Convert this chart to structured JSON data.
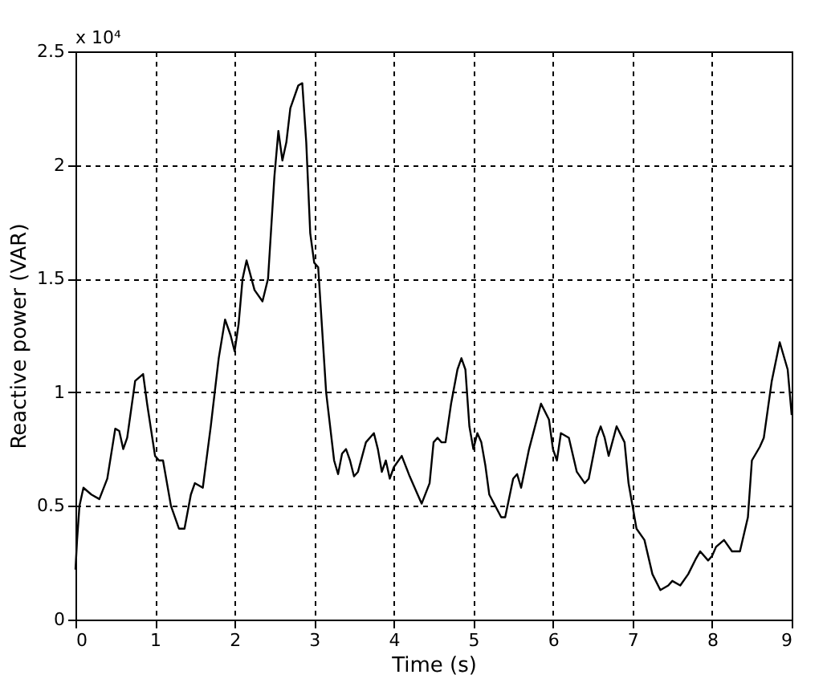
{
  "chart_data": {
    "type": "line",
    "xlabel": "Time (s)",
    "ylabel": "Reactive power (VAR)",
    "annotations": [
      "x 10⁴"
    ],
    "xlim": [
      0,
      9
    ],
    "xticks": [
      0,
      1,
      2,
      3,
      4,
      5,
      6,
      7,
      8,
      9
    ],
    "ylim": [
      0,
      2.5
    ],
    "yticks": [
      0,
      0.5,
      1,
      1.5,
      2,
      2.5
    ],
    "grid": true,
    "line_style": "solid",
    "series": [
      {
        "color": "#000000",
        "x": [
          0,
          0.02,
          0.05,
          0.1,
          0.2,
          0.3,
          0.4,
          0.5,
          0.55,
          0.6,
          0.65,
          0.75,
          0.85,
          0.9,
          1.0,
          1.05,
          1.1,
          1.2,
          1.3,
          1.37,
          1.45,
          1.5,
          1.6,
          1.7,
          1.8,
          1.88,
          1.95,
          2.0,
          2.05,
          2.1,
          2.15,
          2.25,
          2.35,
          2.42,
          2.5,
          2.55,
          2.6,
          2.65,
          2.7,
          2.8,
          2.85,
          2.9,
          2.95,
          3.0,
          3.05,
          3.15,
          3.25,
          3.3,
          3.35,
          3.4,
          3.45,
          3.5,
          3.55,
          3.65,
          3.75,
          3.8,
          3.85,
          3.9,
          3.95,
          4.0,
          4.1,
          4.2,
          4.3,
          4.35,
          4.45,
          4.5,
          4.55,
          4.6,
          4.65,
          4.72,
          4.8,
          4.85,
          4.9,
          4.95,
          5.0,
          5.05,
          5.1,
          5.15,
          5.2,
          5.35,
          5.4,
          5.5,
          5.55,
          5.6,
          5.7,
          5.85,
          5.95,
          6.0,
          6.05,
          6.1,
          6.2,
          6.3,
          6.4,
          6.45,
          6.55,
          6.6,
          6.65,
          6.7,
          6.8,
          6.9,
          6.95,
          7.0,
          7.05,
          7.15,
          7.25,
          7.35,
          7.45,
          7.5,
          7.6,
          7.7,
          7.8,
          7.85,
          7.95,
          8.0,
          8.05,
          8.15,
          8.25,
          8.35,
          8.45,
          8.5,
          8.6,
          8.65,
          8.75,
          8.85,
          8.95,
          9.0
        ],
        "values": [
          0.22,
          0.35,
          0.5,
          0.58,
          0.55,
          0.53,
          0.62,
          0.84,
          0.83,
          0.75,
          0.8,
          1.05,
          1.08,
          0.95,
          0.72,
          0.7,
          0.7,
          0.5,
          0.4,
          0.4,
          0.55,
          0.6,
          0.58,
          0.85,
          1.15,
          1.32,
          1.25,
          1.18,
          1.3,
          1.5,
          1.58,
          1.45,
          1.4,
          1.5,
          1.95,
          2.15,
          2.02,
          2.1,
          2.25,
          2.35,
          2.36,
          2.1,
          1.7,
          1.57,
          1.55,
          1.0,
          0.7,
          0.64,
          0.73,
          0.75,
          0.7,
          0.63,
          0.65,
          0.78,
          0.82,
          0.75,
          0.65,
          0.7,
          0.62,
          0.67,
          0.72,
          0.63,
          0.55,
          0.51,
          0.6,
          0.78,
          0.8,
          0.78,
          0.78,
          0.95,
          1.1,
          1.15,
          1.1,
          0.85,
          0.75,
          0.82,
          0.78,
          0.68,
          0.55,
          0.45,
          0.45,
          0.62,
          0.64,
          0.58,
          0.75,
          0.95,
          0.88,
          0.75,
          0.7,
          0.82,
          0.8,
          0.65,
          0.6,
          0.62,
          0.8,
          0.85,
          0.8,
          0.72,
          0.85,
          0.78,
          0.6,
          0.5,
          0.4,
          0.35,
          0.2,
          0.13,
          0.15,
          0.17,
          0.15,
          0.2,
          0.27,
          0.3,
          0.26,
          0.28,
          0.32,
          0.35,
          0.3,
          0.3,
          0.45,
          0.7,
          0.76,
          0.8,
          1.05,
          1.22,
          1.1,
          0.9
        ]
      }
    ]
  }
}
